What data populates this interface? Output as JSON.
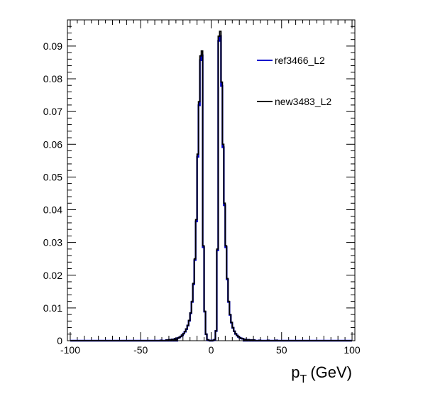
{
  "chart_data": {
    "type": "line",
    "xlabel": "p",
    "xlabel_sub": "T",
    "xlabel_unit": "(GeV)",
    "ylabel": "",
    "xlim": [
      -102,
      102
    ],
    "ylim": [
      0,
      0.098
    ],
    "grid": false,
    "legend_position": "top-right",
    "x_ticks": [
      -100,
      -50,
      0,
      50,
      100
    ],
    "x_tick_labels": [
      "-100",
      "-50",
      "0",
      "50",
      "100"
    ],
    "y_ticks": [
      0,
      0.01,
      0.02,
      0.03,
      0.04,
      0.05,
      0.06,
      0.07,
      0.08,
      0.09
    ],
    "y_tick_labels": [
      "0",
      "0.01",
      "0.02",
      "0.03",
      "0.04",
      "0.05",
      "0.06",
      "0.07",
      "0.08",
      "0.09"
    ],
    "bin_edges_start": -100,
    "bin_width": 1,
    "nonzero_bins": {
      "-36": 0.0001,
      "-32": 0.0002,
      "-30": 0.0003,
      "-28": 0.0004,
      "-26": 0.0006,
      "-24": 0.0008,
      "-23": 0.001,
      "-22": 0.0013,
      "-21": 0.0017,
      "-20": 0.0022,
      "-19": 0.0028,
      "-18": 0.0036,
      "-17": 0.0047,
      "-16": 0.0062,
      "-15": 0.0085,
      "-14": 0.012,
      "-13": 0.0175,
      "-12": 0.025,
      "-11": 0.037,
      "-10": 0.057,
      "-9": 0.073,
      "-8": 0.087,
      "-7": 0.0885,
      "-6": 0.029,
      "-5": 0.009,
      "-4": 0.002,
      "-3": 0.0003,
      "-2": 0.0001,
      "-1": 0.0,
      "0": 0.0,
      "1": 0.0001,
      "2": 0.0003,
      "3": 0.003,
      "4": 0.028,
      "5": 0.093,
      "6": 0.0945,
      "7": 0.079,
      "8": 0.06,
      "9": 0.042,
      "10": 0.029,
      "11": 0.019,
      "12": 0.012,
      "13": 0.008,
      "14": 0.0056,
      "15": 0.004,
      "16": 0.0029,
      "17": 0.0021,
      "18": 0.0016,
      "19": 0.0012,
      "20": 0.0009,
      "21": 0.0007,
      "22": 0.0006,
      "24": 0.0004,
      "26": 0.0003,
      "28": 0.0002,
      "30": 0.0002,
      "34": 0.0001,
      "40": 0.0001,
      "46": 0.0001
    },
    "series": [
      {
        "name": "ref3466_L2",
        "color": "#0000cc",
        "scale": 0.985
      },
      {
        "name": "new3483_L2",
        "color": "#000000",
        "scale": 1.0
      }
    ]
  }
}
